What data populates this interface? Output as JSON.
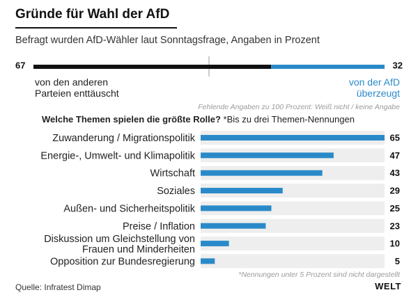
{
  "title": "Gründe für Wahl der AfD",
  "subtitle": "Befragt wurden AfD-Wähler laut Sonntagsfrage, Angaben in Prozent",
  "colors": {
    "blue": "#2a8ac9",
    "black": "#111111",
    "track": "#eeeeee"
  },
  "split": {
    "left_value": 67,
    "right_value": 32,
    "left_label_lines": [
      "von den anderen",
      "Parteien enttäuscht"
    ],
    "right_label_lines": [
      "von der AfD",
      "überzeugt"
    ],
    "footnote": "Fehlende Angaben zu 100 Prozent: Weiß nicht / keine Angabe"
  },
  "question": "Welche Themen spielen die größte Rolle?",
  "question_note": "*Bis zu drei Themen-Nennungen",
  "chart_data": {
    "type": "bar",
    "orientation": "horizontal",
    "categories": [
      "Zuwanderung / Migrationspolitik",
      "Energie-, Umwelt- und Klimapolitik",
      "Wirtschaft",
      "Soziales",
      "Außen- und Sicherheitspolitik",
      "Preise / Inflation",
      "Diskussion um Gleichstellung von Frauen und Minderheiten",
      "Opposition zur Bundesregierung"
    ],
    "label_lines": [
      [
        "Zuwanderung / Migrationspolitik"
      ],
      [
        "Energie-, Umwelt- und Klimapolitik"
      ],
      [
        "Wirtschaft"
      ],
      [
        "Soziales"
      ],
      [
        "Außen- und Sicherheitspolitik"
      ],
      [
        "Preise / Inflation"
      ],
      [
        "Diskussion um Gleichstellung von",
        "Frauen und Minderheiten"
      ],
      [
        "Opposition zur Bundesregierung"
      ]
    ],
    "values": [
      65,
      47,
      43,
      29,
      25,
      23,
      10,
      5
    ],
    "xlim": [
      0,
      65
    ],
    "grid": false,
    "footnote": "*Nennungen unter 5 Prozent sind nicht dargestellt"
  },
  "source": "Quelle: Infratest Dimap",
  "brand": "WELT"
}
